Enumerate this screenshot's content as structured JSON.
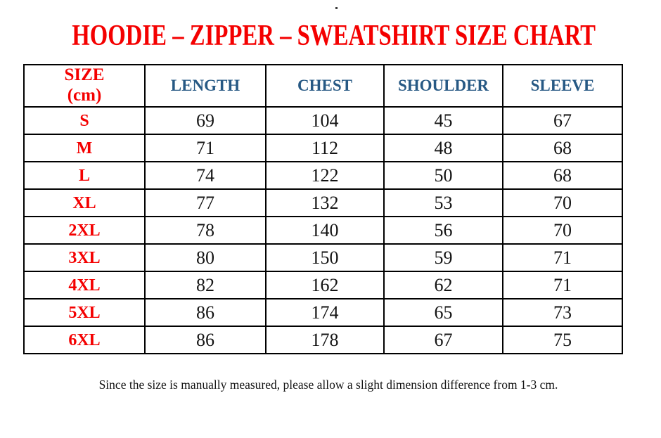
{
  "page": {
    "stray_dot": ".",
    "title": "HOODIE – ZIPPER – SWEATSHIRT SIZE CHART",
    "footnote": "Since the size is manually measured, please allow a slight dimension difference from 1-3 cm."
  },
  "colors": {
    "title_red": "#f40000",
    "size_red": "#f40000",
    "header_blue": "#275984",
    "value_black": "#141414",
    "border_black": "#000000",
    "page_bg": "#ffffff"
  },
  "table": {
    "unit": "cm",
    "headers": [
      "SIZE\n(cm)",
      "LENGTH",
      "CHEST",
      "SHOULDER",
      "SLEEVE"
    ],
    "column_keys": [
      "size",
      "length",
      "chest",
      "shoulder",
      "sleeve"
    ],
    "rows": [
      {
        "size": "S",
        "length": "69",
        "chest": "104",
        "shoulder": "45",
        "sleeve": "67"
      },
      {
        "size": "M",
        "length": "71",
        "chest": "112",
        "shoulder": "48",
        "sleeve": "68"
      },
      {
        "size": "L",
        "length": "74",
        "chest": "122",
        "shoulder": "50",
        "sleeve": "68"
      },
      {
        "size": "XL",
        "length": "77",
        "chest": "132",
        "shoulder": "53",
        "sleeve": "70"
      },
      {
        "size": "2XL",
        "length": "78",
        "chest": "140",
        "shoulder": "56",
        "sleeve": "70"
      },
      {
        "size": "3XL",
        "length": "80",
        "chest": "150",
        "shoulder": "59",
        "sleeve": "71"
      },
      {
        "size": "4XL",
        "length": "82",
        "chest": "162",
        "shoulder": "62",
        "sleeve": "71"
      },
      {
        "size": "5XL",
        "length": "86",
        "chest": "174",
        "shoulder": "65",
        "sleeve": "73"
      },
      {
        "size": "6XL",
        "length": "86",
        "chest": "178",
        "shoulder": "67",
        "sleeve": "75"
      }
    ]
  }
}
